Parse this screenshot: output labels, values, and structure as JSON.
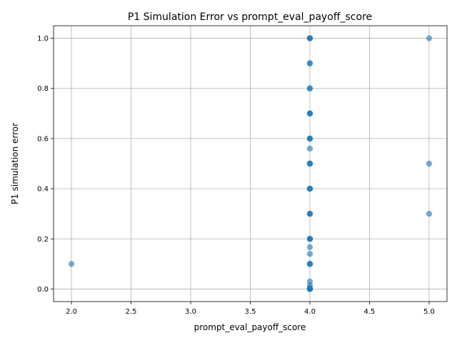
{
  "colors": {
    "point": "#1f77b4",
    "grid": "#b0b0b0",
    "background": "#ffffff"
  },
  "chart_data": {
    "type": "scatter",
    "title": "P1 Simulation Error vs prompt_eval_payoff_score",
    "xlabel": "prompt_eval_payoff_score",
    "ylabel": "P1 simulation error",
    "xlim": [
      1.85,
      5.15
    ],
    "ylim": [
      -0.05,
      1.05
    ],
    "xticks": [
      2.0,
      2.5,
      3.0,
      3.5,
      4.0,
      4.5,
      5.0
    ],
    "yticks": [
      0.0,
      0.2,
      0.4,
      0.6,
      0.8,
      1.0
    ],
    "xtick_labels": [
      "2.0",
      "2.5",
      "3.0",
      "3.5",
      "4.0",
      "4.5",
      "5.0"
    ],
    "ytick_labels": [
      "0.0",
      "0.2",
      "0.4",
      "0.6",
      "0.8",
      "1.0"
    ],
    "grid": true,
    "point_alpha": 0.6,
    "points": [
      {
        "x": 2.0,
        "y": 0.1
      },
      {
        "x": 4.0,
        "y": 1.0
      },
      {
        "x": 4.0,
        "y": 1.0
      },
      {
        "x": 4.0,
        "y": 1.0
      },
      {
        "x": 4.0,
        "y": 0.9
      },
      {
        "x": 4.0,
        "y": 0.9
      },
      {
        "x": 4.0,
        "y": 0.8
      },
      {
        "x": 4.0,
        "y": 0.8
      },
      {
        "x": 4.0,
        "y": 0.7
      },
      {
        "x": 4.0,
        "y": 0.7
      },
      {
        "x": 4.0,
        "y": 0.7
      },
      {
        "x": 4.0,
        "y": 0.6
      },
      {
        "x": 4.0,
        "y": 0.6
      },
      {
        "x": 4.0,
        "y": 0.6
      },
      {
        "x": 4.0,
        "y": 0.56
      },
      {
        "x": 4.0,
        "y": 0.5
      },
      {
        "x": 4.0,
        "y": 0.5
      },
      {
        "x": 4.0,
        "y": 0.5
      },
      {
        "x": 4.0,
        "y": 0.4
      },
      {
        "x": 4.0,
        "y": 0.4
      },
      {
        "x": 4.0,
        "y": 0.4
      },
      {
        "x": 4.0,
        "y": 0.3
      },
      {
        "x": 4.0,
        "y": 0.3
      },
      {
        "x": 4.0,
        "y": 0.3
      },
      {
        "x": 4.0,
        "y": 0.2
      },
      {
        "x": 4.0,
        "y": 0.2
      },
      {
        "x": 4.0,
        "y": 0.2
      },
      {
        "x": 4.0,
        "y": 0.167
      },
      {
        "x": 4.0,
        "y": 0.14
      },
      {
        "x": 4.0,
        "y": 0.1
      },
      {
        "x": 4.0,
        "y": 0.1
      },
      {
        "x": 4.0,
        "y": 0.1
      },
      {
        "x": 4.0,
        "y": 0.03
      },
      {
        "x": 4.0,
        "y": 0.015
      },
      {
        "x": 4.0,
        "y": 0.005
      },
      {
        "x": 4.0,
        "y": 0.0
      },
      {
        "x": 4.0,
        "y": 0.0
      },
      {
        "x": 4.0,
        "y": 0.0
      },
      {
        "x": 4.0,
        "y": 0.0
      },
      {
        "x": 5.0,
        "y": 1.0
      },
      {
        "x": 5.0,
        "y": 0.5
      },
      {
        "x": 5.0,
        "y": 0.3
      }
    ]
  }
}
